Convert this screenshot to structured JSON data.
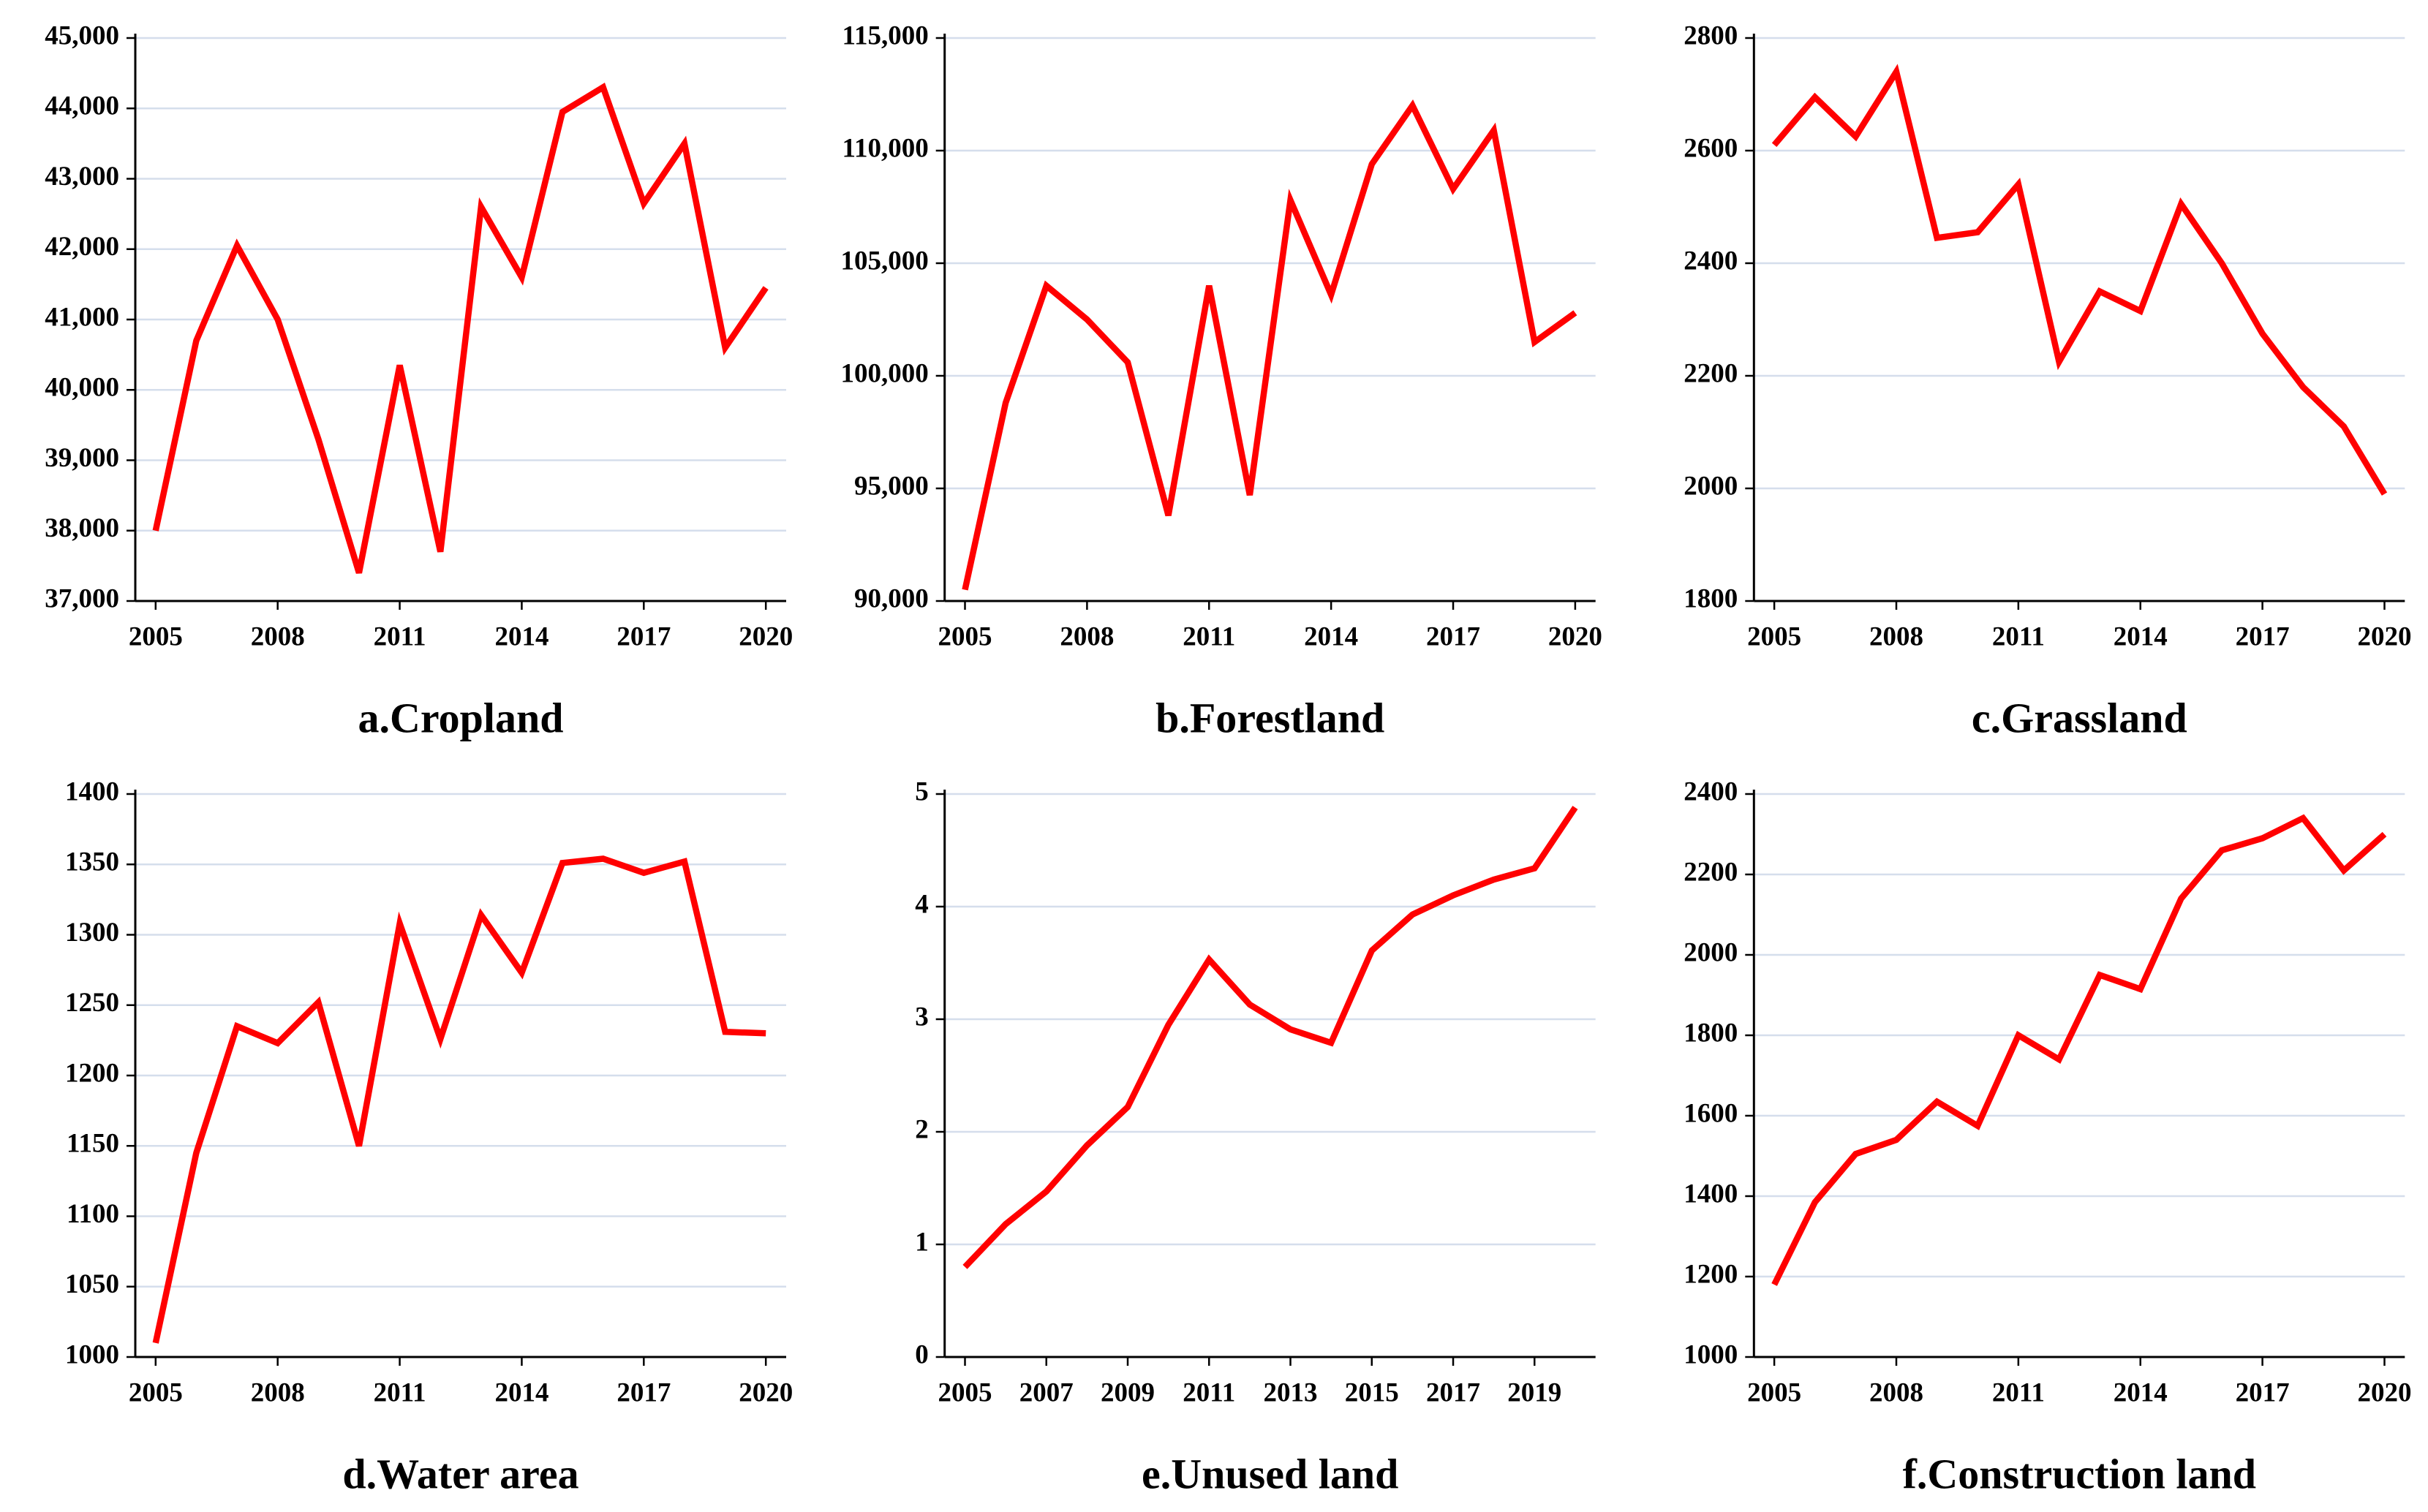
{
  "chart_data": [
    {
      "type": "line",
      "title": "a.Cropland",
      "color": "#ff0000",
      "x": [
        2005,
        2006,
        2007,
        2008,
        2009,
        2010,
        2011,
        2012,
        2013,
        2014,
        2015,
        2016,
        2017,
        2018,
        2019,
        2020
      ],
      "values": [
        38000,
        40700,
        42050,
        41000,
        39300,
        37400,
        40350,
        37700,
        42600,
        41600,
        43950,
        44300,
        42650,
        43500,
        40600,
        41450
      ],
      "xlim": [
        2004.5,
        2020.5
      ],
      "xticks": [
        2005,
        2008,
        2011,
        2014,
        2017,
        2020
      ],
      "ylim": [
        37000,
        45000
      ],
      "yticks": [
        {
          "value": 37000,
          "label": "37,000"
        },
        {
          "value": 38000,
          "label": "38,000"
        },
        {
          "value": 39000,
          "label": "39,000"
        },
        {
          "value": 40000,
          "label": "40,000"
        },
        {
          "value": 41000,
          "label": "41,000"
        },
        {
          "value": 42000,
          "label": "42,000"
        },
        {
          "value": 43000,
          "label": "43,000"
        },
        {
          "value": 44000,
          "label": "44,000"
        },
        {
          "value": 45000,
          "label": "45,000"
        }
      ],
      "grid": true
    },
    {
      "type": "line",
      "title": "b.Forestland",
      "color": "#ff0000",
      "x": [
        2005,
        2006,
        2007,
        2008,
        2009,
        2010,
        2011,
        2012,
        2013,
        2014,
        2015,
        2016,
        2017,
        2018,
        2019,
        2020
      ],
      "values": [
        90500,
        98800,
        104000,
        102500,
        100600,
        93800,
        104000,
        94700,
        107800,
        103600,
        109400,
        112000,
        108300,
        110900,
        101500,
        102800
      ],
      "xlim": [
        2004.5,
        2020.5
      ],
      "xticks": [
        2005,
        2008,
        2011,
        2014,
        2017,
        2020
      ],
      "ylim": [
        90000,
        115000
      ],
      "yticks": [
        {
          "value": 90000,
          "label": "90,000"
        },
        {
          "value": 95000,
          "label": "95,000"
        },
        {
          "value": 100000,
          "label": "100,000"
        },
        {
          "value": 105000,
          "label": "105,000"
        },
        {
          "value": 110000,
          "label": "110,000"
        },
        {
          "value": 115000,
          "label": "115,000"
        }
      ],
      "grid": true
    },
    {
      "type": "line",
      "title": "c.Grassland",
      "color": "#ff0000",
      "x": [
        2005,
        2006,
        2007,
        2008,
        2009,
        2010,
        2011,
        2012,
        2013,
        2014,
        2015,
        2016,
        2017,
        2018,
        2019,
        2020
      ],
      "values": [
        2610,
        2695,
        2625,
        2740,
        2445,
        2455,
        2540,
        2225,
        2350,
        2315,
        2505,
        2400,
        2275,
        2180,
        2110,
        1990
      ],
      "xlim": [
        2004.5,
        2020.5
      ],
      "xticks": [
        2005,
        2008,
        2011,
        2014,
        2017,
        2020
      ],
      "ylim": [
        1800,
        2800
      ],
      "yticks": [
        1800,
        2000,
        2200,
        2400,
        2600,
        2800
      ],
      "grid": true
    },
    {
      "type": "line",
      "title": "d.Water area",
      "color": "#ff0000",
      "x": [
        2005,
        2006,
        2007,
        2008,
        2009,
        2010,
        2011,
        2012,
        2013,
        2014,
        2015,
        2016,
        2017,
        2018,
        2019,
        2020
      ],
      "values": [
        1010,
        1145,
        1235,
        1223,
        1252,
        1150,
        1308,
        1226,
        1314,
        1273,
        1351,
        1354,
        1344,
        1352,
        1231,
        1230
      ],
      "xlim": [
        2004.5,
        2020.5
      ],
      "xticks": [
        2005,
        2008,
        2011,
        2014,
        2017,
        2020
      ],
      "ylim": [
        1000,
        1400
      ],
      "yticks": [
        1000,
        1050,
        1100,
        1150,
        1200,
        1250,
        1300,
        1350,
        1400
      ],
      "grid": true
    },
    {
      "type": "line",
      "title": "e.Unused land",
      "color": "#ff0000",
      "x": [
        2005,
        2006,
        2007,
        2008,
        2009,
        2010,
        2011,
        2012,
        2013,
        2014,
        2015,
        2016,
        2017,
        2018,
        2019,
        2020
      ],
      "values": [
        0.8,
        1.18,
        1.47,
        1.88,
        2.22,
        2.95,
        3.53,
        3.13,
        2.91,
        2.79,
        3.61,
        3.93,
        4.1,
        4.24,
        4.34,
        4.88
      ],
      "xlim": [
        2004.5,
        2020.5
      ],
      "xticks": [
        2005,
        2007,
        2009,
        2011,
        2013,
        2015,
        2017,
        2019
      ],
      "ylim": [
        0,
        5
      ],
      "yticks": [
        0,
        1,
        2,
        3,
        4,
        5
      ],
      "grid": true
    },
    {
      "type": "line",
      "title": "f.Construction land",
      "color": "#ff0000",
      "x": [
        2005,
        2006,
        2007,
        2008,
        2009,
        2010,
        2011,
        2012,
        2013,
        2014,
        2015,
        2016,
        2017,
        2018,
        2019,
        2020
      ],
      "values": [
        1180,
        1385,
        1505,
        1540,
        1635,
        1575,
        1800,
        1740,
        1950,
        1915,
        2140,
        2260,
        2290,
        2340,
        2210,
        2300
      ],
      "xlim": [
        2004.5,
        2020.5
      ],
      "xticks": [
        2005,
        2008,
        2011,
        2014,
        2017,
        2020
      ],
      "ylim": [
        1000,
        2400
      ],
      "yticks": [
        1000,
        1200,
        1400,
        1600,
        1800,
        2000,
        2200,
        2400
      ],
      "grid": true
    }
  ]
}
